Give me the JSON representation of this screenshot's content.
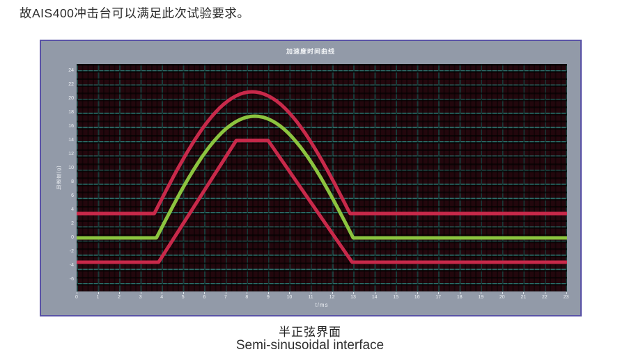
{
  "intro_text": "故AIS400冲击台可以满足此次试验要求。",
  "panel": {
    "title": "加速度时间曲线"
  },
  "caption": {
    "zh": "半正弦界面",
    "en": "Semi-sinusoidal interface"
  },
  "colors": {
    "panel_background": "#929aa8",
    "panel_border": "#5952a6",
    "plot_background": "#23070d",
    "grid_line": "#2c6d69",
    "tolerance_curve": "#c8294a",
    "nominal_curve": "#8cc43f",
    "tick_text": "#eef1f5"
  },
  "chart_data": {
    "type": "line",
    "title": "加速度时间曲线",
    "xlabel": "t/ms",
    "ylabel": "加速度(g)",
    "xlim": [
      0,
      23.05
    ],
    "ylim": [
      -7.7,
      25
    ],
    "x_ticks": [
      0,
      1,
      2,
      3,
      4,
      5,
      6,
      7,
      8,
      9,
      10,
      11,
      12,
      13,
      14,
      15,
      16,
      17,
      18,
      19,
      20,
      21,
      22,
      23
    ],
    "y_ticks": [
      24,
      22,
      20,
      18,
      16,
      14,
      12,
      10,
      8,
      6,
      4,
      2,
      0,
      -2,
      -4,
      -6
    ],
    "grid": "on",
    "legend": "none",
    "description": "Half-sine shock pulse (nominal, green) with upper and lower tolerance bounds (red)",
    "series": [
      {
        "name": "upper-tolerance",
        "shape": "half-sine",
        "color": "#c8294a",
        "baseline": 3.5,
        "peak": 21,
        "t_start": 3.65,
        "t_end": 12.85
      },
      {
        "name": "lower-tolerance",
        "shape": "polyline",
        "color": "#c8294a",
        "points": [
          [
            0,
            -3.5
          ],
          [
            3.85,
            -3.5
          ],
          [
            7.5,
            14
          ],
          [
            9.0,
            14
          ],
          [
            12.95,
            -3.5
          ],
          [
            23.05,
            -3.5
          ]
        ]
      },
      {
        "name": "nominal",
        "shape": "half-sine",
        "color": "#8cc43f",
        "baseline": 0,
        "peak": 17.5,
        "t_start": 3.75,
        "t_end": 13.0
      }
    ]
  }
}
